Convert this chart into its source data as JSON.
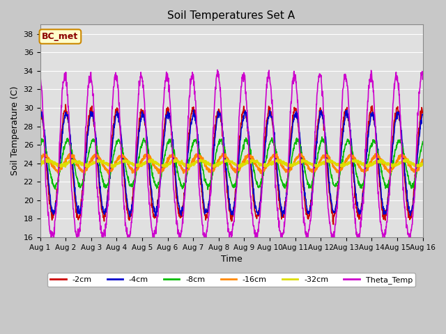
{
  "title": "Soil Temperatures Set A",
  "xlabel": "Time",
  "ylabel": "Soil Temperature (C)",
  "ylim": [
    16,
    39
  ],
  "xlim": [
    0,
    15
  ],
  "fig_facecolor": "#c8c8c8",
  "ax_facecolor": "#e0e0e0",
  "annotation": "BC_met",
  "annotation_bg": "#ffffcc",
  "annotation_border": "#cc8800",
  "annotation_text_color": "#8b0000",
  "xtick_labels": [
    "Aug 1",
    "Aug 2",
    "Aug 3",
    "Aug 4",
    "Aug 5",
    "Aug 6",
    "Aug 7",
    "Aug 8",
    "Aug 9",
    "Aug 10",
    "Aug 11",
    "Aug 12",
    "Aug 13",
    "Aug 14",
    "Aug 15",
    "Aug 16"
  ],
  "ytick_values": [
    16,
    18,
    20,
    22,
    24,
    26,
    28,
    30,
    32,
    34,
    36,
    38
  ],
  "series_order": [
    "-2cm",
    "-4cm",
    "-8cm",
    "-16cm",
    "-32cm",
    "Theta_Temp"
  ],
  "series": {
    "-2cm": {
      "color": "#cc0000",
      "lw": 1.2
    },
    "-4cm": {
      "color": "#0000cc",
      "lw": 1.2
    },
    "-8cm": {
      "color": "#00bb00",
      "lw": 1.2
    },
    "-16cm": {
      "color": "#ff8800",
      "lw": 1.8
    },
    "-32cm": {
      "color": "#dddd00",
      "lw": 2.0
    },
    "Theta_Temp": {
      "color": "#cc00cc",
      "lw": 1.2
    }
  }
}
